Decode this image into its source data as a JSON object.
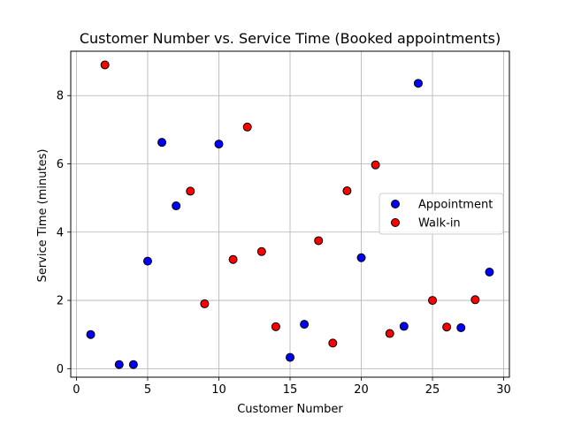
{
  "chart_data": {
    "type": "scatter",
    "title": "Customer Number vs. Service Time (Booked appointments)",
    "xlabel": "Customer Number",
    "ylabel": "Service Time (minutes)",
    "xlim": [
      -0.4,
      30.4
    ],
    "ylim": [
      -0.25,
      9.3
    ],
    "xticks": [
      0,
      5,
      10,
      15,
      20,
      25,
      30
    ],
    "yticks": [
      0,
      2,
      4,
      6,
      8
    ],
    "grid": true,
    "legend_position": "center-right",
    "series": [
      {
        "name": "Appointment",
        "color": "#0000ff",
        "points": [
          {
            "x": 1,
            "y": 1.0
          },
          {
            "x": 3,
            "y": 0.12
          },
          {
            "x": 4,
            "y": 0.12
          },
          {
            "x": 5,
            "y": 3.15
          },
          {
            "x": 6,
            "y": 6.63
          },
          {
            "x": 7,
            "y": 4.77
          },
          {
            "x": 10,
            "y": 6.58
          },
          {
            "x": 15,
            "y": 0.33
          },
          {
            "x": 16,
            "y": 1.3
          },
          {
            "x": 20,
            "y": 3.25
          },
          {
            "x": 23,
            "y": 1.24
          },
          {
            "x": 24,
            "y": 8.36
          },
          {
            "x": 27,
            "y": 1.2
          },
          {
            "x": 29,
            "y": 2.83
          }
        ]
      },
      {
        "name": "Walk-in",
        "color": "#ff0000",
        "points": [
          {
            "x": 2,
            "y": 8.9
          },
          {
            "x": 8,
            "y": 5.2
          },
          {
            "x": 9,
            "y": 1.9
          },
          {
            "x": 11,
            "y": 3.2
          },
          {
            "x": 12,
            "y": 7.08
          },
          {
            "x": 13,
            "y": 3.43
          },
          {
            "x": 14,
            "y": 1.23
          },
          {
            "x": 17,
            "y": 3.75
          },
          {
            "x": 18,
            "y": 0.75
          },
          {
            "x": 19,
            "y": 5.21
          },
          {
            "x": 21,
            "y": 5.97
          },
          {
            "x": 22,
            "y": 1.03
          },
          {
            "x": 25,
            "y": 2.0
          },
          {
            "x": 26,
            "y": 1.22
          },
          {
            "x": 28,
            "y": 2.02
          }
        ]
      }
    ]
  }
}
